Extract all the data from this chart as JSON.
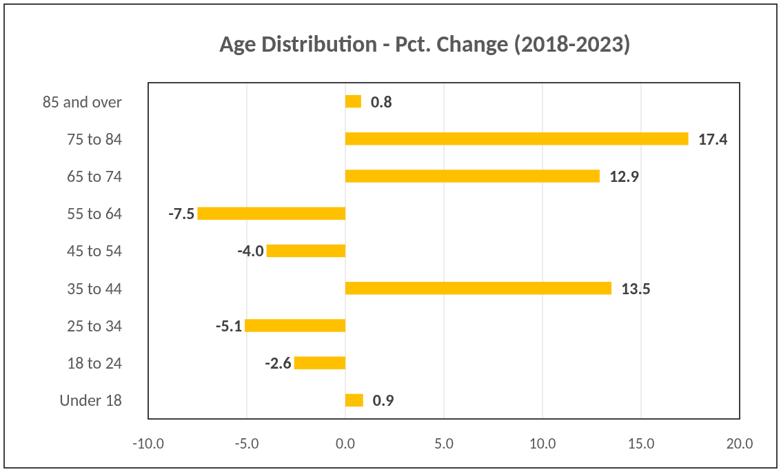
{
  "chart_data": {
    "type": "bar",
    "orientation": "horizontal",
    "title": "Age Distribution - Pct. Change (2018-2023)",
    "categories": [
      "85 and over",
      "75 to 84",
      "65 to 74",
      "55 to 64",
      "45 to 54",
      "35 to 44",
      "25 to 34",
      "18 to 24",
      "Under 18"
    ],
    "values": [
      0.8,
      17.4,
      12.9,
      -7.5,
      -4.0,
      13.5,
      -5.1,
      -2.6,
      0.9
    ],
    "value_labels": [
      "0.8",
      "17.4",
      "12.9",
      "-7.5",
      "-4.0",
      "13.5",
      "-5.1",
      "-2.6",
      "0.9"
    ],
    "color": "#ffc000",
    "xlim": [
      -10,
      20
    ],
    "xticks": [
      {
        "value": -10,
        "label": "-10.0"
      },
      {
        "value": -5,
        "label": "-5.0"
      },
      {
        "value": 0,
        "label": "0.0"
      },
      {
        "value": 5,
        "label": "5.0"
      },
      {
        "value": 10,
        "label": "10.0"
      },
      {
        "value": 15,
        "label": "15.0"
      },
      {
        "value": 20,
        "label": "20.0"
      }
    ],
    "grid": "x"
  }
}
